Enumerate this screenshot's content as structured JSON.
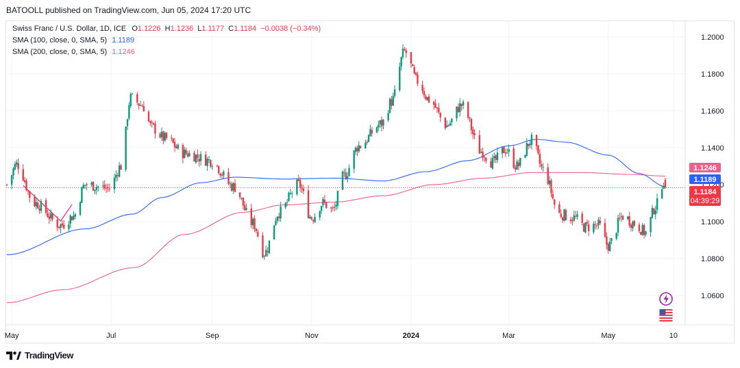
{
  "header": {
    "credit": "BATOOLL published on TradingView.com, Jun 05, 2024 17:20 UTC"
  },
  "legend": {
    "symbol": "Swiss Franc / U.S. Dollar, 1D, ICE",
    "o_label": "O",
    "o_value": "1.1226",
    "h_label": "H",
    "h_value": "1.1236",
    "l_label": "L",
    "l_value": "1.1177",
    "c_label": "C",
    "c_value": "1.1184",
    "change": "−0.0038 (−0.34%)",
    "sma100_label": "SMA (100, close, 0, SMA, 5)",
    "sma100_value": "1.1189",
    "sma200_label": "SMA (200, close, 0, SMA, 5)",
    "sma200_value": "1.1246"
  },
  "price_badges": {
    "sma200": "1.1246",
    "sma100": "1.1189",
    "last": "1.1184",
    "countdown": "04:39:29"
  },
  "footer": {
    "brand": "TradingView"
  },
  "colors": {
    "up": "#089981",
    "down": "#f23645",
    "sma100": "#2962ff",
    "sma200": "#f05e8a",
    "grid": "#f0f3fa"
  },
  "icons": [
    "lightning-icon",
    "us-flag-icon"
  ],
  "chart_data": {
    "type": "candlestick",
    "title": "Swiss Franc / U.S. Dollar, 1D, ICE",
    "y_ticks": [
      "1.2000",
      "1.1800",
      "1.1600",
      "1.1400",
      "1.1200",
      "1.1000",
      "1.0800",
      "1.0600"
    ],
    "ylim": [
      1.044,
      1.2085
    ],
    "x_ticks": [
      "May",
      "Jul",
      "Sep",
      "Nov",
      "2024",
      "Mar",
      "May",
      "10"
    ],
    "close_anchors": [
      [
        "2023-04-28",
        1.12
      ],
      [
        "2023-05-04",
        1.131
      ],
      [
        "2023-05-15",
        1.11
      ],
      [
        "2023-05-31",
        1.098
      ],
      [
        "2023-06-08",
        1.103
      ],
      [
        "2023-06-15",
        1.12
      ],
      [
        "2023-06-30",
        1.118
      ],
      [
        "2023-07-07",
        1.13
      ],
      [
        "2023-07-13",
        1.167
      ],
      [
        "2023-07-20",
        1.163
      ],
      [
        "2023-07-26",
        1.151
      ],
      [
        "2023-08-03",
        1.145
      ],
      [
        "2023-08-15",
        1.137
      ],
      [
        "2023-08-31",
        1.133
      ],
      [
        "2023-09-14",
        1.119
      ],
      [
        "2023-09-26",
        1.099
      ],
      [
        "2023-10-03",
        1.083
      ],
      [
        "2023-10-12",
        1.105
      ],
      [
        "2023-10-24",
        1.12
      ],
      [
        "2023-11-01",
        1.102
      ],
      [
        "2023-11-08",
        1.11
      ],
      [
        "2023-11-14",
        1.106
      ],
      [
        "2023-11-21",
        1.125
      ],
      [
        "2023-11-30",
        1.141
      ],
      [
        "2023-12-14",
        1.153
      ],
      [
        "2023-12-20",
        1.165
      ],
      [
        "2023-12-28",
        1.192
      ],
      [
        "2024-01-05",
        1.176
      ],
      [
        "2024-01-12",
        1.166
      ],
      [
        "2024-01-23",
        1.152
      ],
      [
        "2024-02-01",
        1.163
      ],
      [
        "2024-02-13",
        1.138
      ],
      [
        "2024-02-20",
        1.132
      ],
      [
        "2024-02-28",
        1.139
      ],
      [
        "2024-03-06",
        1.13
      ],
      [
        "2024-03-15",
        1.144
      ],
      [
        "2024-03-22",
        1.128
      ],
      [
        "2024-04-01",
        1.104
      ],
      [
        "2024-04-10",
        1.102
      ],
      [
        "2024-04-17",
        1.097
      ],
      [
        "2024-04-25",
        1.098
      ],
      [
        "2024-05-01",
        1.087
      ],
      [
        "2024-05-10",
        1.103
      ],
      [
        "2024-05-17",
        1.099
      ],
      [
        "2024-05-24",
        1.094
      ],
      [
        "2024-05-30",
        1.108
      ],
      [
        "2024-06-04",
        1.122
      ],
      [
        "2024-06-05",
        1.1184
      ]
    ],
    "sma100_anchors": [
      [
        "2023-04-28",
        1.082
      ],
      [
        "2023-06-15",
        1.096
      ],
      [
        "2023-07-14",
        1.104
      ],
      [
        "2023-08-01",
        1.113
      ],
      [
        "2023-08-25",
        1.121
      ],
      [
        "2023-09-15",
        1.124
      ],
      [
        "2023-10-15",
        1.123
      ],
      [
        "2023-11-15",
        1.1235
      ],
      [
        "2023-12-15",
        1.122
      ],
      [
        "2024-01-10",
        1.127
      ],
      [
        "2024-02-05",
        1.133
      ],
      [
        "2024-03-01",
        1.141
      ],
      [
        "2024-03-18",
        1.1445
      ],
      [
        "2024-04-05",
        1.143
      ],
      [
        "2024-05-01",
        1.136
      ],
      [
        "2024-05-20",
        1.126
      ],
      [
        "2024-06-05",
        1.1189
      ]
    ],
    "sma200_anchors": [
      [
        "2023-04-28",
        1.056
      ],
      [
        "2023-06-01",
        1.063
      ],
      [
        "2023-07-15",
        1.075
      ],
      [
        "2023-08-15",
        1.093
      ],
      [
        "2023-09-20",
        1.105
      ],
      [
        "2023-10-15",
        1.109
      ],
      [
        "2023-11-15",
        1.1105
      ],
      [
        "2023-12-15",
        1.114
      ],
      [
        "2024-01-15",
        1.12
      ],
      [
        "2024-02-15",
        1.1235
      ],
      [
        "2024-03-15",
        1.1265
      ],
      [
        "2024-04-15",
        1.1265
      ],
      [
        "2024-05-15",
        1.1255
      ],
      [
        "2024-06-05",
        1.1246
      ]
    ],
    "drawing_polyline": [
      [
        "2023-05-08",
        1.1195
      ],
      [
        "2023-05-31",
        1.1003
      ],
      [
        "2023-06-07",
        1.1092
      ]
    ],
    "last_price": 1.1184
  }
}
